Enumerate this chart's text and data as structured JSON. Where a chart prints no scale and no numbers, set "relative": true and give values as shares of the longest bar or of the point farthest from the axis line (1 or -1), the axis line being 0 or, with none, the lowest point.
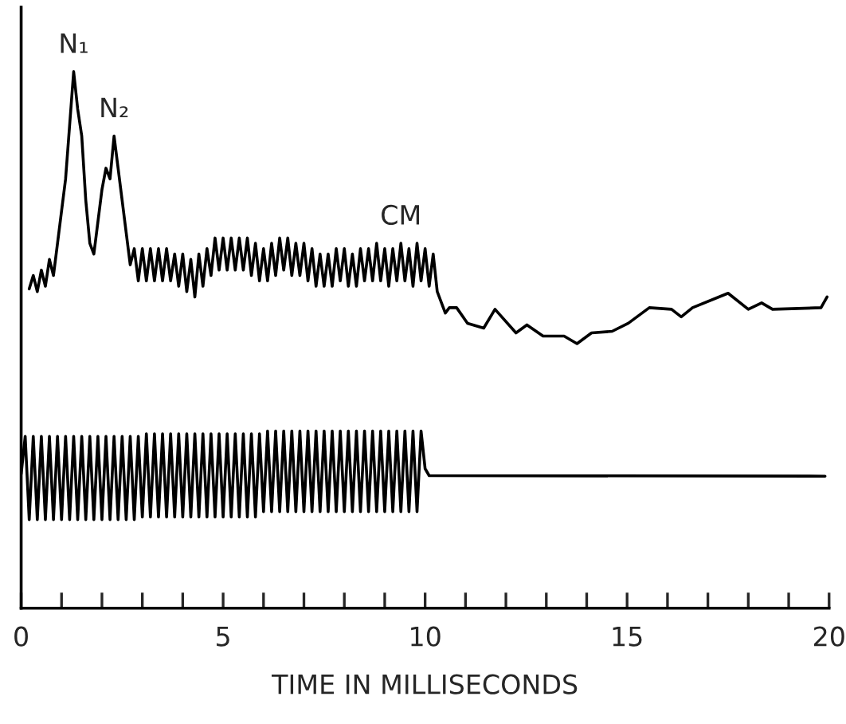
{
  "chart_data": {
    "type": "line",
    "relative": true,
    "xlabel": "TIME IN MILLISECONDS",
    "xlim": [
      0,
      20
    ],
    "xticks": [
      0,
      {
        "value": 1,
        "label": null
      },
      {
        "value": 2,
        "label": null
      },
      {
        "value": 3,
        "label": null
      },
      {
        "value": 4,
        "label": null
      },
      5,
      {
        "value": 6,
        "label": null
      },
      {
        "value": 7,
        "label": null
      },
      {
        "value": 8,
        "label": null
      },
      {
        "value": 9,
        "label": null
      },
      10,
      {
        "value": 11,
        "label": null
      },
      {
        "value": 12,
        "label": null
      },
      {
        "value": 13,
        "label": null
      },
      {
        "value": 14,
        "label": null
      },
      15,
      {
        "value": 16,
        "label": null
      },
      {
        "value": 17,
        "label": null
      },
      {
        "value": 18,
        "label": null
      },
      {
        "value": 19,
        "label": null
      },
      20
    ],
    "tick_labels": "x",
    "grid": false,
    "legend": false,
    "marker": "none",
    "line_style": "solid",
    "annotations": [
      {
        "text": "N₁",
        "x": 1.3,
        "y": 1.0
      },
      {
        "text": "N₂",
        "x": 2.3,
        "y": 0.88
      },
      {
        "text": "CM",
        "x": 9.4,
        "y": 0.68
      }
    ],
    "series": [
      {
        "color": "#000000",
        "x": [
          0.2,
          0.3,
          0.4,
          0.5,
          0.6,
          0.7,
          0.8,
          0.9,
          1.0,
          1.1,
          1.2,
          1.3,
          1.4,
          1.5,
          1.6,
          1.7,
          1.8,
          1.9,
          2.0,
          2.1,
          2.2,
          2.3,
          2.4,
          2.5,
          2.6,
          2.7,
          2.8,
          2.9,
          3.0,
          3.1,
          3.2,
          3.3,
          3.4,
          3.5,
          3.6,
          3.7,
          3.8,
          3.9,
          4.0,
          4.1,
          4.2,
          4.3,
          4.4,
          4.5,
          4.6,
          4.7,
          4.8,
          4.9,
          5.0,
          5.1,
          5.2,
          5.3,
          5.4,
          5.5,
          5.6,
          5.7,
          5.8,
          5.9,
          6.0,
          6.1,
          6.2,
          6.3,
          6.4,
          6.5,
          6.6,
          6.7,
          6.8,
          6.9,
          7.0,
          7.1,
          7.2,
          7.3,
          7.4,
          7.5,
          7.6,
          7.7,
          7.8,
          7.9,
          8.0,
          8.1,
          8.2,
          8.3,
          8.4,
          8.5,
          8.6,
          8.7,
          8.8,
          8.9,
          9.0,
          9.1,
          9.2,
          9.3,
          9.4,
          9.5,
          9.6,
          9.7,
          9.8,
          9.9,
          10.0,
          10.1,
          10.2,
          10.3,
          10.5,
          10.6,
          10.78,
          11.05,
          11.45,
          11.73,
          12.25,
          12.52,
          12.92,
          13.44,
          13.76,
          14.12,
          14.63,
          15.03,
          15.55,
          16.1,
          16.34,
          16.62,
          17.5,
          18.0,
          18.33,
          18.6,
          19.8,
          19.95
        ],
        "values": [
          0.595,
          0.62,
          0.59,
          0.63,
          0.6,
          0.65,
          0.62,
          0.68,
          0.74,
          0.8,
          0.9,
          1.0,
          0.93,
          0.88,
          0.76,
          0.68,
          0.66,
          0.72,
          0.78,
          0.82,
          0.8,
          0.88,
          0.82,
          0.76,
          0.7,
          0.64,
          0.67,
          0.61,
          0.67,
          0.61,
          0.67,
          0.61,
          0.67,
          0.61,
          0.67,
          0.61,
          0.66,
          0.6,
          0.66,
          0.59,
          0.65,
          0.58,
          0.66,
          0.6,
          0.67,
          0.62,
          0.69,
          0.63,
          0.69,
          0.63,
          0.69,
          0.63,
          0.69,
          0.63,
          0.69,
          0.62,
          0.68,
          0.61,
          0.67,
          0.61,
          0.68,
          0.62,
          0.69,
          0.63,
          0.69,
          0.62,
          0.68,
          0.62,
          0.68,
          0.61,
          0.67,
          0.6,
          0.66,
          0.6,
          0.66,
          0.6,
          0.67,
          0.61,
          0.67,
          0.6,
          0.66,
          0.6,
          0.67,
          0.61,
          0.67,
          0.61,
          0.68,
          0.61,
          0.67,
          0.6,
          0.67,
          0.61,
          0.68,
          0.61,
          0.67,
          0.6,
          0.68,
          0.61,
          0.67,
          0.6,
          0.66,
          0.59,
          0.55,
          0.56,
          0.56,
          0.531,
          0.522,
          0.557,
          0.513,
          0.528,
          0.507,
          0.507,
          0.493,
          0.513,
          0.516,
          0.531,
          0.56,
          0.557,
          0.543,
          0.56,
          0.587,
          0.557,
          0.569,
          0.557,
          0.56,
          0.58
        ]
      },
      {
        "color": "#000000",
        "x": [
          0.0,
          0.1,
          0.2,
          0.3,
          0.4,
          0.5,
          0.6,
          0.7,
          0.8,
          0.9,
          1.0,
          1.1,
          1.2,
          1.3,
          1.4,
          1.5,
          1.6,
          1.7,
          1.8,
          1.9,
          2.0,
          2.1,
          2.2,
          2.3,
          2.4,
          2.5,
          2.6,
          2.7,
          2.8,
          2.9,
          3.0,
          3.1,
          3.2,
          3.3,
          3.4,
          3.5,
          3.6,
          3.7,
          3.8,
          3.9,
          4.0,
          4.1,
          4.2,
          4.3,
          4.4,
          4.5,
          4.6,
          4.7,
          4.8,
          4.9,
          5.0,
          5.1,
          5.2,
          5.3,
          5.4,
          5.5,
          5.6,
          5.7,
          5.8,
          5.9,
          6.0,
          6.1,
          6.2,
          6.3,
          6.4,
          6.5,
          6.6,
          6.7,
          6.8,
          6.9,
          7.0,
          7.1,
          7.2,
          7.3,
          7.4,
          7.5,
          7.6,
          7.7,
          7.8,
          7.9,
          8.0,
          8.1,
          8.2,
          8.3,
          8.4,
          8.5,
          8.6,
          8.7,
          8.8,
          8.9,
          9.0,
          9.1,
          9.2,
          9.3,
          9.4,
          9.5,
          9.6,
          9.7,
          9.8,
          9.9,
          10.0,
          10.1,
          19.9
        ],
        "values": [
          0.25,
          0.32,
          0.165,
          0.32,
          0.165,
          0.32,
          0.165,
          0.32,
          0.165,
          0.32,
          0.165,
          0.32,
          0.165,
          0.32,
          0.165,
          0.32,
          0.165,
          0.32,
          0.165,
          0.32,
          0.165,
          0.32,
          0.165,
          0.32,
          0.165,
          0.32,
          0.165,
          0.32,
          0.165,
          0.32,
          0.17,
          0.325,
          0.17,
          0.325,
          0.17,
          0.325,
          0.17,
          0.325,
          0.17,
          0.325,
          0.17,
          0.325,
          0.17,
          0.325,
          0.17,
          0.325,
          0.17,
          0.325,
          0.17,
          0.325,
          0.17,
          0.325,
          0.17,
          0.325,
          0.17,
          0.325,
          0.17,
          0.325,
          0.17,
          0.325,
          0.18,
          0.33,
          0.18,
          0.33,
          0.18,
          0.33,
          0.18,
          0.33,
          0.18,
          0.33,
          0.18,
          0.33,
          0.18,
          0.33,
          0.18,
          0.33,
          0.18,
          0.33,
          0.18,
          0.33,
          0.18,
          0.33,
          0.18,
          0.33,
          0.18,
          0.33,
          0.18,
          0.33,
          0.18,
          0.33,
          0.18,
          0.33,
          0.18,
          0.33,
          0.18,
          0.33,
          0.18,
          0.33,
          0.18,
          0.33,
          0.26,
          0.247,
          0.246
        ]
      }
    ]
  }
}
